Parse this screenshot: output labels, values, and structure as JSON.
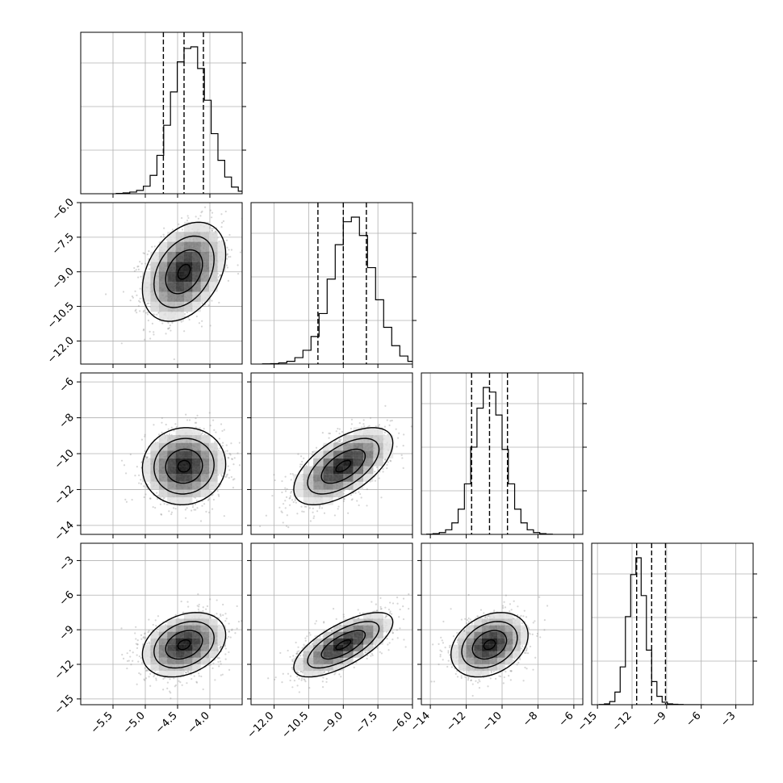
{
  "chart_data": {
    "type": "corner",
    "grid": true,
    "n_params": 4,
    "params": [
      {
        "index": 0,
        "center": -4.4,
        "sigma": 0.3,
        "quantiles": [
          -4.72,
          -4.4,
          -4.1
        ],
        "range": [
          -6.0,
          -3.5
        ],
        "ticks": [
          -5.5,
          -5.0,
          -4.5,
          -4.0
        ],
        "tick_labels": [
          "−5.5",
          "−5.0",
          "−4.5",
          "−4.0"
        ]
      },
      {
        "index": 1,
        "center": -9.0,
        "sigma": 1.0,
        "quantiles": [
          -10.1,
          -9.0,
          -8.0
        ],
        "range": [
          -13.0,
          -6.0
        ],
        "ticks": [
          -12.0,
          -10.5,
          -9.0,
          -7.5,
          -6.0
        ],
        "tick_labels": [
          "−12.0",
          "−10.5",
          "−9.0",
          "−7.5",
          "−6.0"
        ]
      },
      {
        "index": 2,
        "center": -10.7,
        "sigma": 1.0,
        "quantiles": [
          -11.7,
          -10.7,
          -9.7
        ],
        "range": [
          -14.5,
          -5.5
        ],
        "ticks": [
          -14,
          -12,
          -10,
          -8,
          -6
        ],
        "tick_labels": [
          "−14",
          "−12",
          "−10",
          "−8",
          "−6"
        ]
      },
      {
        "index": 3,
        "center": -10.3,
        "sigma": 1.3,
        "quantiles": [
          -11.6,
          -10.3,
          -9.1
        ],
        "range": [
          -15.5,
          -1.5
        ],
        "ticks": [
          -15,
          -12,
          -9,
          -6,
          -3
        ],
        "tick_labels": [
          "−15",
          "−12",
          "−9",
          "−6",
          "−3"
        ]
      }
    ],
    "correlations": {
      "1-0": 0.35,
      "2-0": 0.05,
      "2-1": 0.6,
      "3-0": 0.3,
      "3-1": 0.7,
      "3-2": 0.3
    },
    "histogram_counts": [
      [
        2,
        5,
        10,
        20,
        45,
        110,
        230,
        410,
        610,
        790,
        870,
        880,
        750,
        560,
        360,
        200,
        100,
        40,
        15,
        5
      ],
      [
        1,
        2,
        5,
        12,
        28,
        60,
        120,
        220,
        370,
        520,
        620,
        640,
        560,
        420,
        280,
        160,
        80,
        35,
        12,
        3
      ],
      [
        1,
        3,
        8,
        20,
        50,
        110,
        220,
        380,
        550,
        640,
        620,
        520,
        370,
        220,
        110,
        50,
        20,
        8,
        3,
        1
      ],
      [
        1,
        4,
        15,
        60,
        180,
        420,
        620,
        700,
        520,
        260,
        110,
        40,
        12,
        4,
        2,
        1,
        0,
        0,
        0,
        0
      ]
    ]
  }
}
